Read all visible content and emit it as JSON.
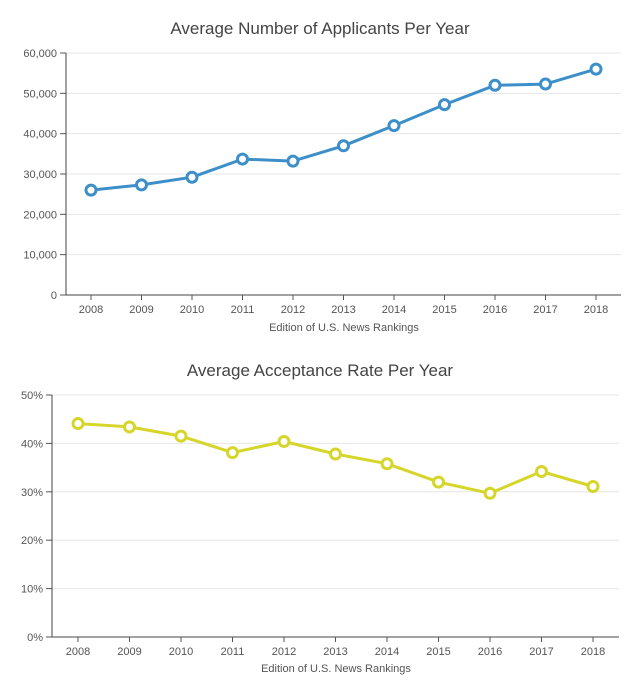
{
  "chart_data": [
    {
      "type": "line",
      "title": "Average Number of Applicants Per Year",
      "xlabel": "Edition of U.S. News Rankings",
      "ylabel": "",
      "categories": [
        "2008",
        "2009",
        "2010",
        "2011",
        "2012",
        "2013",
        "2014",
        "2015",
        "2016",
        "2017",
        "2018"
      ],
      "series": [
        {
          "name": "Average Number of Applicants",
          "values": [
            26000,
            27300,
            29200,
            33700,
            33200,
            37000,
            42000,
            47200,
            52000,
            52300,
            56000
          ]
        }
      ],
      "ylim": [
        0,
        60000
      ],
      "yticks": [
        0,
        10000,
        20000,
        30000,
        40000,
        50000,
        60000
      ],
      "ytick_labels": [
        "0",
        "10,000",
        "20,000",
        "30,000",
        "40,000",
        "50,000",
        "60,000"
      ],
      "grid": true,
      "color": "#3d8fc9"
    },
    {
      "type": "line",
      "title": "Average Acceptance Rate Per Year",
      "xlabel": "Edition of U.S. News Rankings",
      "ylabel": "",
      "categories": [
        "2008",
        "2009",
        "2010",
        "2011",
        "2012",
        "2013",
        "2014",
        "2015",
        "2016",
        "2017",
        "2018"
      ],
      "series": [
        {
          "name": "Average Acceptance Rate",
          "values": [
            44.1,
            43.4,
            41.5,
            38.1,
            40.4,
            37.8,
            35.8,
            32.0,
            29.7,
            34.2,
            31.1
          ]
        }
      ],
      "ylim": [
        0,
        50
      ],
      "yticks": [
        0,
        10,
        20,
        30,
        40,
        50
      ],
      "ytick_labels": [
        "0%",
        "10%",
        "20%",
        "30%",
        "40%",
        "50%"
      ],
      "grid": true,
      "color": "#d6d62a"
    }
  ]
}
